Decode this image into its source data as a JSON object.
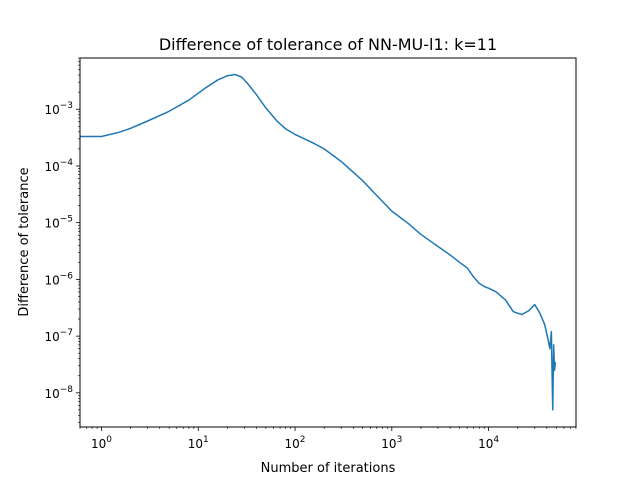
{
  "chart_data": {
    "type": "line",
    "title": "Difference of tolerance of NN-MU-l1: k=11",
    "xlabel": "Number of iterations",
    "ylabel": "Difference of tolerance",
    "xscale": "log",
    "yscale": "log",
    "xlim": [
      0.6,
      80000
    ],
    "ylim": [
      2.5e-09,
      0.008
    ],
    "grid": false,
    "line_color": "#1f77b4",
    "x_ticks": [
      {
        "value": 1,
        "base": "10",
        "exp": "0"
      },
      {
        "value": 10,
        "base": "10",
        "exp": "1"
      },
      {
        "value": 100,
        "base": "10",
        "exp": "2"
      },
      {
        "value": 1000,
        "base": "10",
        "exp": "3"
      },
      {
        "value": 10000,
        "base": "10",
        "exp": "4"
      }
    ],
    "y_ticks": [
      {
        "value": 1e-08,
        "base": "10",
        "exp": "−8"
      },
      {
        "value": 1e-07,
        "base": "10",
        "exp": "−7"
      },
      {
        "value": 1e-06,
        "base": "10",
        "exp": "−6"
      },
      {
        "value": 1e-05,
        "base": "10",
        "exp": "−5"
      },
      {
        "value": 0.0001,
        "base": "10",
        "exp": "−4"
      },
      {
        "value": 0.001,
        "base": "10",
        "exp": "−3"
      }
    ],
    "series": [
      {
        "x": [
          0.6,
          1.0,
          1.5,
          2.0,
          3.0,
          5.0,
          8.0,
          12.0,
          16.0,
          20.0,
          24.0,
          28.0,
          32.0,
          40.0,
          50.0,
          65.0,
          80.0,
          100.0,
          150.0,
          200.0,
          300.0,
          500.0,
          700.0,
          1000.0,
          1500.0,
          2000.0,
          3000.0,
          4000.0,
          5000.0,
          6000.0,
          7000.0,
          8000.0,
          9000.0,
          10000.0,
          12000.0,
          15000.0,
          18000.0,
          22000.0,
          26000.0,
          30000.0,
          34000.0,
          38000.0,
          41000.0,
          43000.0,
          44500.0,
          46000.0,
          47000.0,
          48000.0,
          49000.0
        ],
        "y": [
          0.00033,
          0.00033,
          0.00039,
          0.00046,
          0.00062,
          0.00092,
          0.00145,
          0.0024,
          0.0033,
          0.0039,
          0.0041,
          0.0037,
          0.0029,
          0.0018,
          0.00105,
          0.00062,
          0.00045,
          0.00036,
          0.00026,
          0.0002,
          0.00012,
          5.5e-05,
          3e-05,
          1.6e-05,
          9.5e-06,
          6.2e-06,
          3.8e-06,
          2.7e-06,
          2e-06,
          1.6e-06,
          1.1e-06,
          8.5e-07,
          7.5e-07,
          7e-07,
          6e-07,
          4.3e-07,
          2.7e-07,
          2.4e-07,
          2.8e-07,
          3.6e-07,
          2.5e-07,
          1.6e-07,
          9e-08,
          6e-08,
          1.2e-07,
          5e-09,
          7e-08,
          2.5e-08,
          3.5e-08
        ]
      }
    ]
  }
}
